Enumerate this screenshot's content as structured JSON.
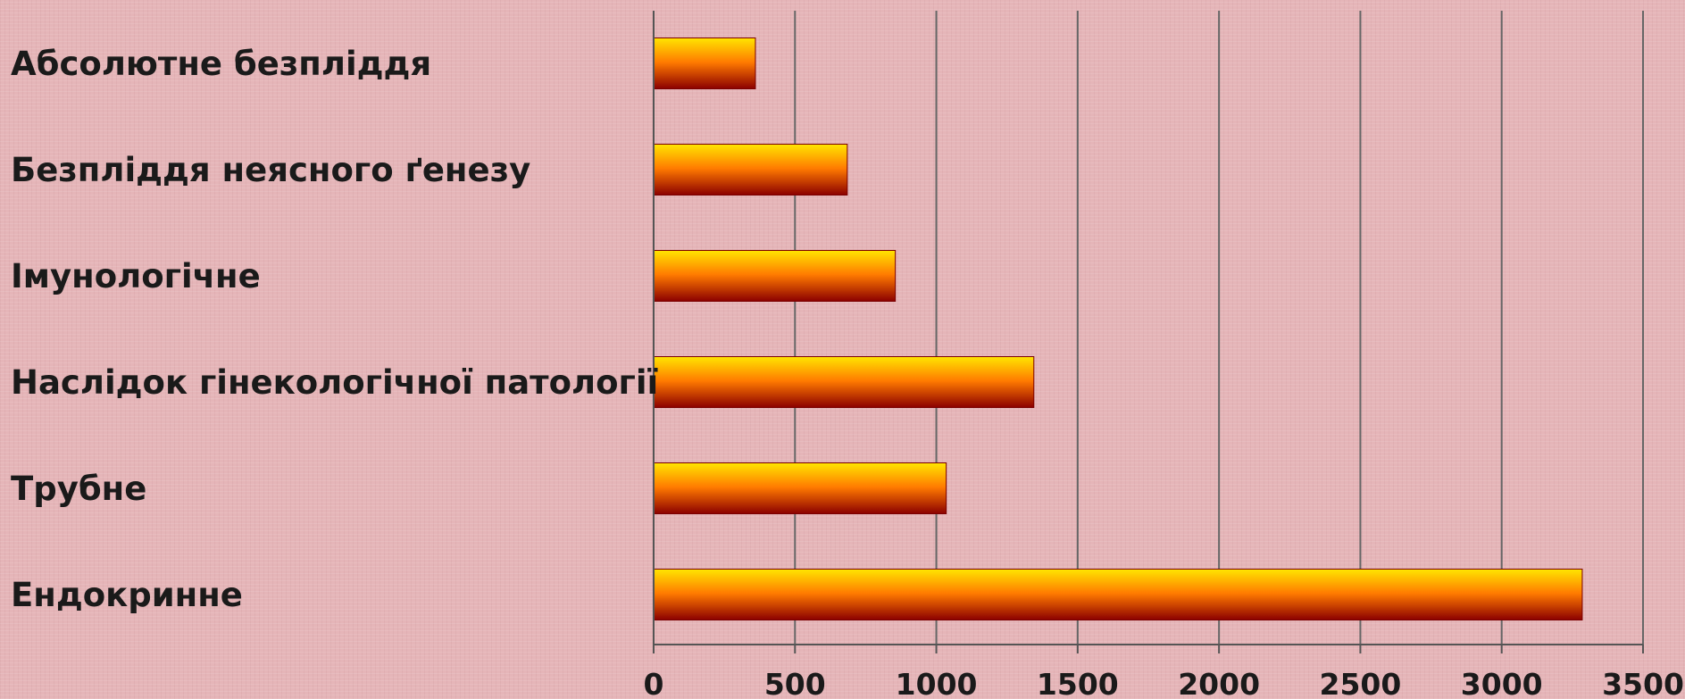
{
  "chart_data": {
    "type": "bar",
    "orientation": "horizontal",
    "categories": [
      "Абсолютне безпліддя",
      "Безпліддя неясного ґенезу",
      "Імунологічне",
      "Наслідок гінекологічної патології",
      "Трубне",
      "Ендокринне"
    ],
    "values": [
      360,
      685,
      855,
      1345,
      1035,
      3285
    ],
    "xlim": [
      0,
      3500
    ],
    "xticks": [
      "0",
      "500",
      "1000",
      "1500",
      "2000",
      "2500",
      "3000",
      "3500"
    ],
    "grid": "vertical",
    "legend": "none",
    "bar_colors": {
      "top": "#ffe600",
      "middle": "#ff7a00",
      "bottom": "#8b0000"
    },
    "gridline_color": "#666666",
    "axis_color": "#555555"
  }
}
